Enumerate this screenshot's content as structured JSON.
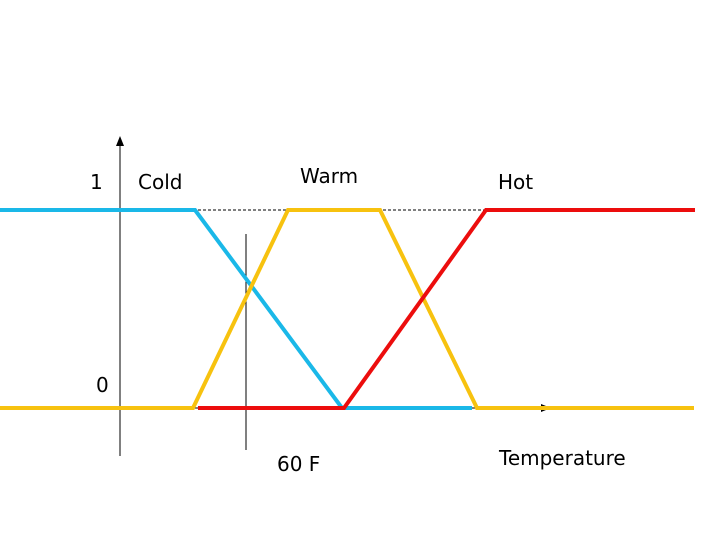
{
  "chart_data": {
    "type": "line",
    "title": "",
    "xlabel": "Temperature",
    "ylabel": "",
    "y_tick_labels": [
      "0",
      "1"
    ],
    "marker_label": "60 F",
    "ylim": [
      0,
      1
    ],
    "grid": false,
    "legend": "none",
    "series": [
      {
        "name": "Cold",
        "color": "#1ab8e8",
        "points": [
          [
            -120,
            1
          ],
          [
            75,
            1
          ],
          [
            222,
            0
          ],
          [
            352,
            0
          ]
        ]
      },
      {
        "name": "Warm",
        "color": "#f7c20f",
        "points": [
          [
            -120,
            0
          ],
          [
            73,
            0
          ],
          [
            168,
            1
          ],
          [
            260,
            1
          ],
          [
            357,
            0
          ],
          [
            574,
            0
          ]
        ]
      },
      {
        "name": "Hot",
        "color": "#ec0d0d",
        "points": [
          [
            78,
            0
          ],
          [
            224,
            0
          ],
          [
            366,
            1
          ],
          [
            575,
            1
          ]
        ]
      }
    ]
  }
}
